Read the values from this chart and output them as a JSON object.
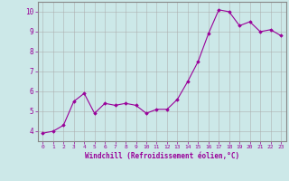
{
  "x": [
    0,
    1,
    2,
    3,
    4,
    5,
    6,
    7,
    8,
    9,
    10,
    11,
    12,
    13,
    14,
    15,
    16,
    17,
    18,
    19,
    20,
    21,
    22,
    23
  ],
  "y": [
    3.9,
    4.0,
    4.3,
    5.5,
    5.9,
    4.9,
    5.4,
    5.3,
    5.4,
    5.3,
    4.9,
    5.1,
    5.1,
    5.6,
    6.5,
    7.5,
    8.9,
    10.1,
    10.0,
    9.3,
    9.5,
    9.0,
    9.1,
    8.8
  ],
  "line_color": "#990099",
  "marker_color": "#990099",
  "bg_color": "#cce8e8",
  "grid_color": "#aaaaaa",
  "spine_color": "#888888",
  "xlabel": "Windchill (Refroidissement éolien,°C)",
  "xlabel_color": "#990099",
  "tick_color": "#990099",
  "ylim": [
    3.5,
    10.5
  ],
  "xlim": [
    -0.5,
    23.5
  ],
  "yticks": [
    4,
    5,
    6,
    7,
    8,
    9,
    10
  ],
  "xticks": [
    0,
    1,
    2,
    3,
    4,
    5,
    6,
    7,
    8,
    9,
    10,
    11,
    12,
    13,
    14,
    15,
    16,
    17,
    18,
    19,
    20,
    21,
    22,
    23
  ],
  "figsize": [
    3.2,
    2.0
  ],
  "dpi": 100
}
